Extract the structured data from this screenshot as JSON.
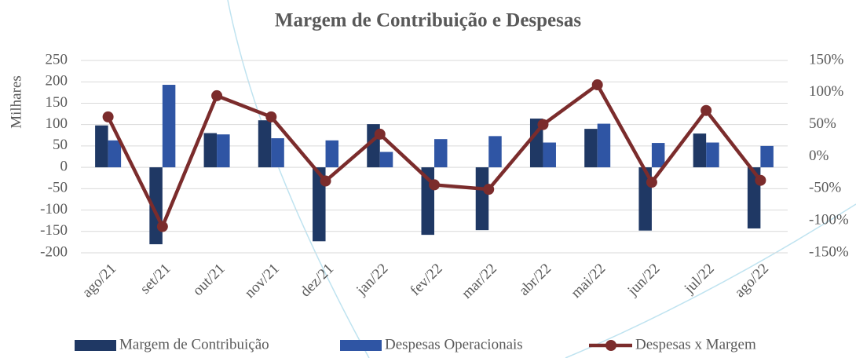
{
  "chart_data": {
    "type": "bar_line",
    "title": "Margem de Contribuição e Despesas",
    "y_label": "Milhares",
    "categories": [
      "ago/21",
      "set/21",
      "out/21",
      "nov/21",
      "dez/21",
      "jan/22",
      "fev/22",
      "mar/22",
      "abr/22",
      "mai/22",
      "jun/22",
      "jul/22",
      "ago/22"
    ],
    "series": [
      {
        "name": "Margem de Contribuição",
        "type": "bar",
        "color": "#1f3864",
        "values": [
          98,
          -180,
          80,
          110,
          -173,
          101,
          -158,
          -147,
          114,
          90,
          -148,
          79,
          -143
        ]
      },
      {
        "name": "Despesas Operacionais",
        "type": "bar",
        "color": "#2f55a4",
        "values": [
          63,
          193,
          77,
          68,
          63,
          36,
          66,
          73,
          58,
          102,
          57,
          58,
          50
        ]
      },
      {
        "name": "Despesas x Margem",
        "type": "line",
        "axis": "y2",
        "color": "#7b2c2c",
        "values": [
          62,
          -109,
          95,
          62,
          -38,
          35,
          -44,
          -51,
          50,
          112,
          -40,
          72,
          -37
        ]
      }
    ],
    "ylim": [
      -200,
      250
    ],
    "yticks": [
      -200,
      -150,
      -100,
      -50,
      0,
      50,
      100,
      150,
      200,
      250
    ],
    "y2lim": [
      -150,
      150
    ],
    "y2ticks": [
      {
        "value": -150,
        "label": "-150%"
      },
      {
        "value": -100,
        "label": "-100%"
      },
      {
        "value": -50,
        "label": "-50%"
      },
      {
        "value": 0,
        "label": "0%"
      },
      {
        "value": 50,
        "label": "50%"
      },
      {
        "value": 100,
        "label": "100%"
      },
      {
        "value": 150,
        "label": "150%"
      }
    ],
    "grid": true
  }
}
